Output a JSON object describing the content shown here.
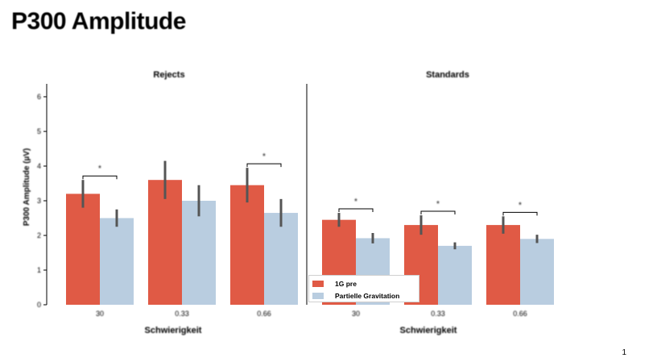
{
  "slide": {
    "title": "P300 Amplitude",
    "page_number": "1"
  },
  "colors": {
    "series_1": "#e05a45",
    "series_2": "#b9cde0",
    "error_bar": "#555555",
    "axis": "#000000"
  },
  "chart_data": [
    {
      "type": "bar",
      "title": "Rejects",
      "xlabel": "Schwierigkeit",
      "ylabel": "P300 Amplitude (µV)",
      "ylim": [
        0,
        6
      ],
      "yticks": [
        0,
        1,
        2,
        3,
        4,
        5,
        6
      ],
      "categories": [
        "30",
        "0.33",
        "0.66"
      ],
      "series": [
        {
          "name": "1G pre",
          "values": [
            3.2,
            3.6,
            3.45
          ],
          "errors": [
            0.4,
            0.55,
            0.5
          ]
        },
        {
          "name": "Partielle Gravitation",
          "values": [
            2.5,
            3.0,
            2.65
          ],
          "errors": [
            0.25,
            0.45,
            0.4
          ]
        }
      ],
      "significance": [
        true,
        false,
        true
      ],
      "significance_label": "*"
    },
    {
      "type": "bar",
      "title": "Standards",
      "xlabel": "Schwierigkeit",
      "ylabel": "",
      "ylim": [
        0,
        6
      ],
      "categories": [
        "30",
        "0.33",
        "0.66"
      ],
      "series": [
        {
          "name": "1G pre",
          "values": [
            2.45,
            2.3,
            2.3
          ],
          "errors": [
            0.2,
            0.28,
            0.25
          ]
        },
        {
          "name": "Partielle Gravitation",
          "values": [
            1.92,
            1.7,
            1.9
          ],
          "errors": [
            0.15,
            0.1,
            0.12
          ]
        }
      ],
      "significance": [
        true,
        true,
        true
      ],
      "significance_label": "*"
    }
  ],
  "legend": {
    "position": "bottom-center",
    "items": [
      {
        "label": "1G pre"
      },
      {
        "label": "Partielle Gravitation"
      }
    ]
  }
}
